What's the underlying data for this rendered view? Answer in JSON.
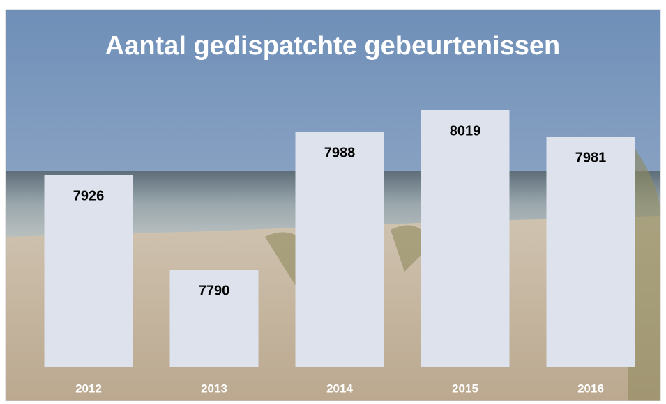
{
  "chart_data": {
    "type": "bar",
    "title": "Aantal gedispatchte gebeurtenissen",
    "categories": [
      "2012",
      "2013",
      "2014",
      "2015",
      "2016"
    ],
    "values": [
      7926,
      7790,
      7988,
      8019,
      7981
    ],
    "color": "#dde2ec",
    "ylim": [
      7650,
      8100
    ]
  }
}
